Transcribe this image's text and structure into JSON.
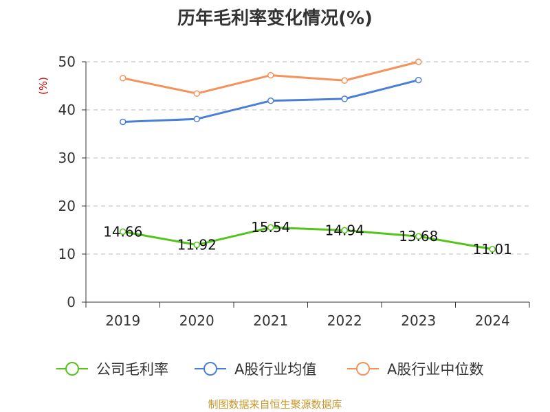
{
  "chart_data": {
    "type": "line",
    "title": "历年毛利率变化情况(%)",
    "ylabel": "(%)",
    "xlabel": "",
    "ylim": [
      0,
      50
    ],
    "yticks": [
      0,
      10,
      20,
      30,
      40,
      50
    ],
    "categories": [
      "2019",
      "2020",
      "2021",
      "2022",
      "2023",
      "2024"
    ],
    "grid": true,
    "legend_position": "bottom",
    "series": [
      {
        "name": "公司毛利率",
        "values": [
          14.66,
          11.92,
          15.54,
          14.94,
          13.68,
          11.01
        ],
        "color": "#52c41a",
        "labels": [
          "14.66",
          "11.92",
          "15.54",
          "14.94",
          "13.68",
          "11.01"
        ]
      },
      {
        "name": "A股行业均值",
        "values": [
          37.5,
          38.1,
          41.9,
          42.3,
          46.2,
          null
        ],
        "color": "#4a7fd6"
      },
      {
        "name": "A股行业中位数",
        "values": [
          46.6,
          43.4,
          47.2,
          46.1,
          50.0,
          null
        ],
        "color": "#f4925a"
      }
    ]
  },
  "footer": {
    "source": "制图数据来自恒生聚源数据库"
  }
}
